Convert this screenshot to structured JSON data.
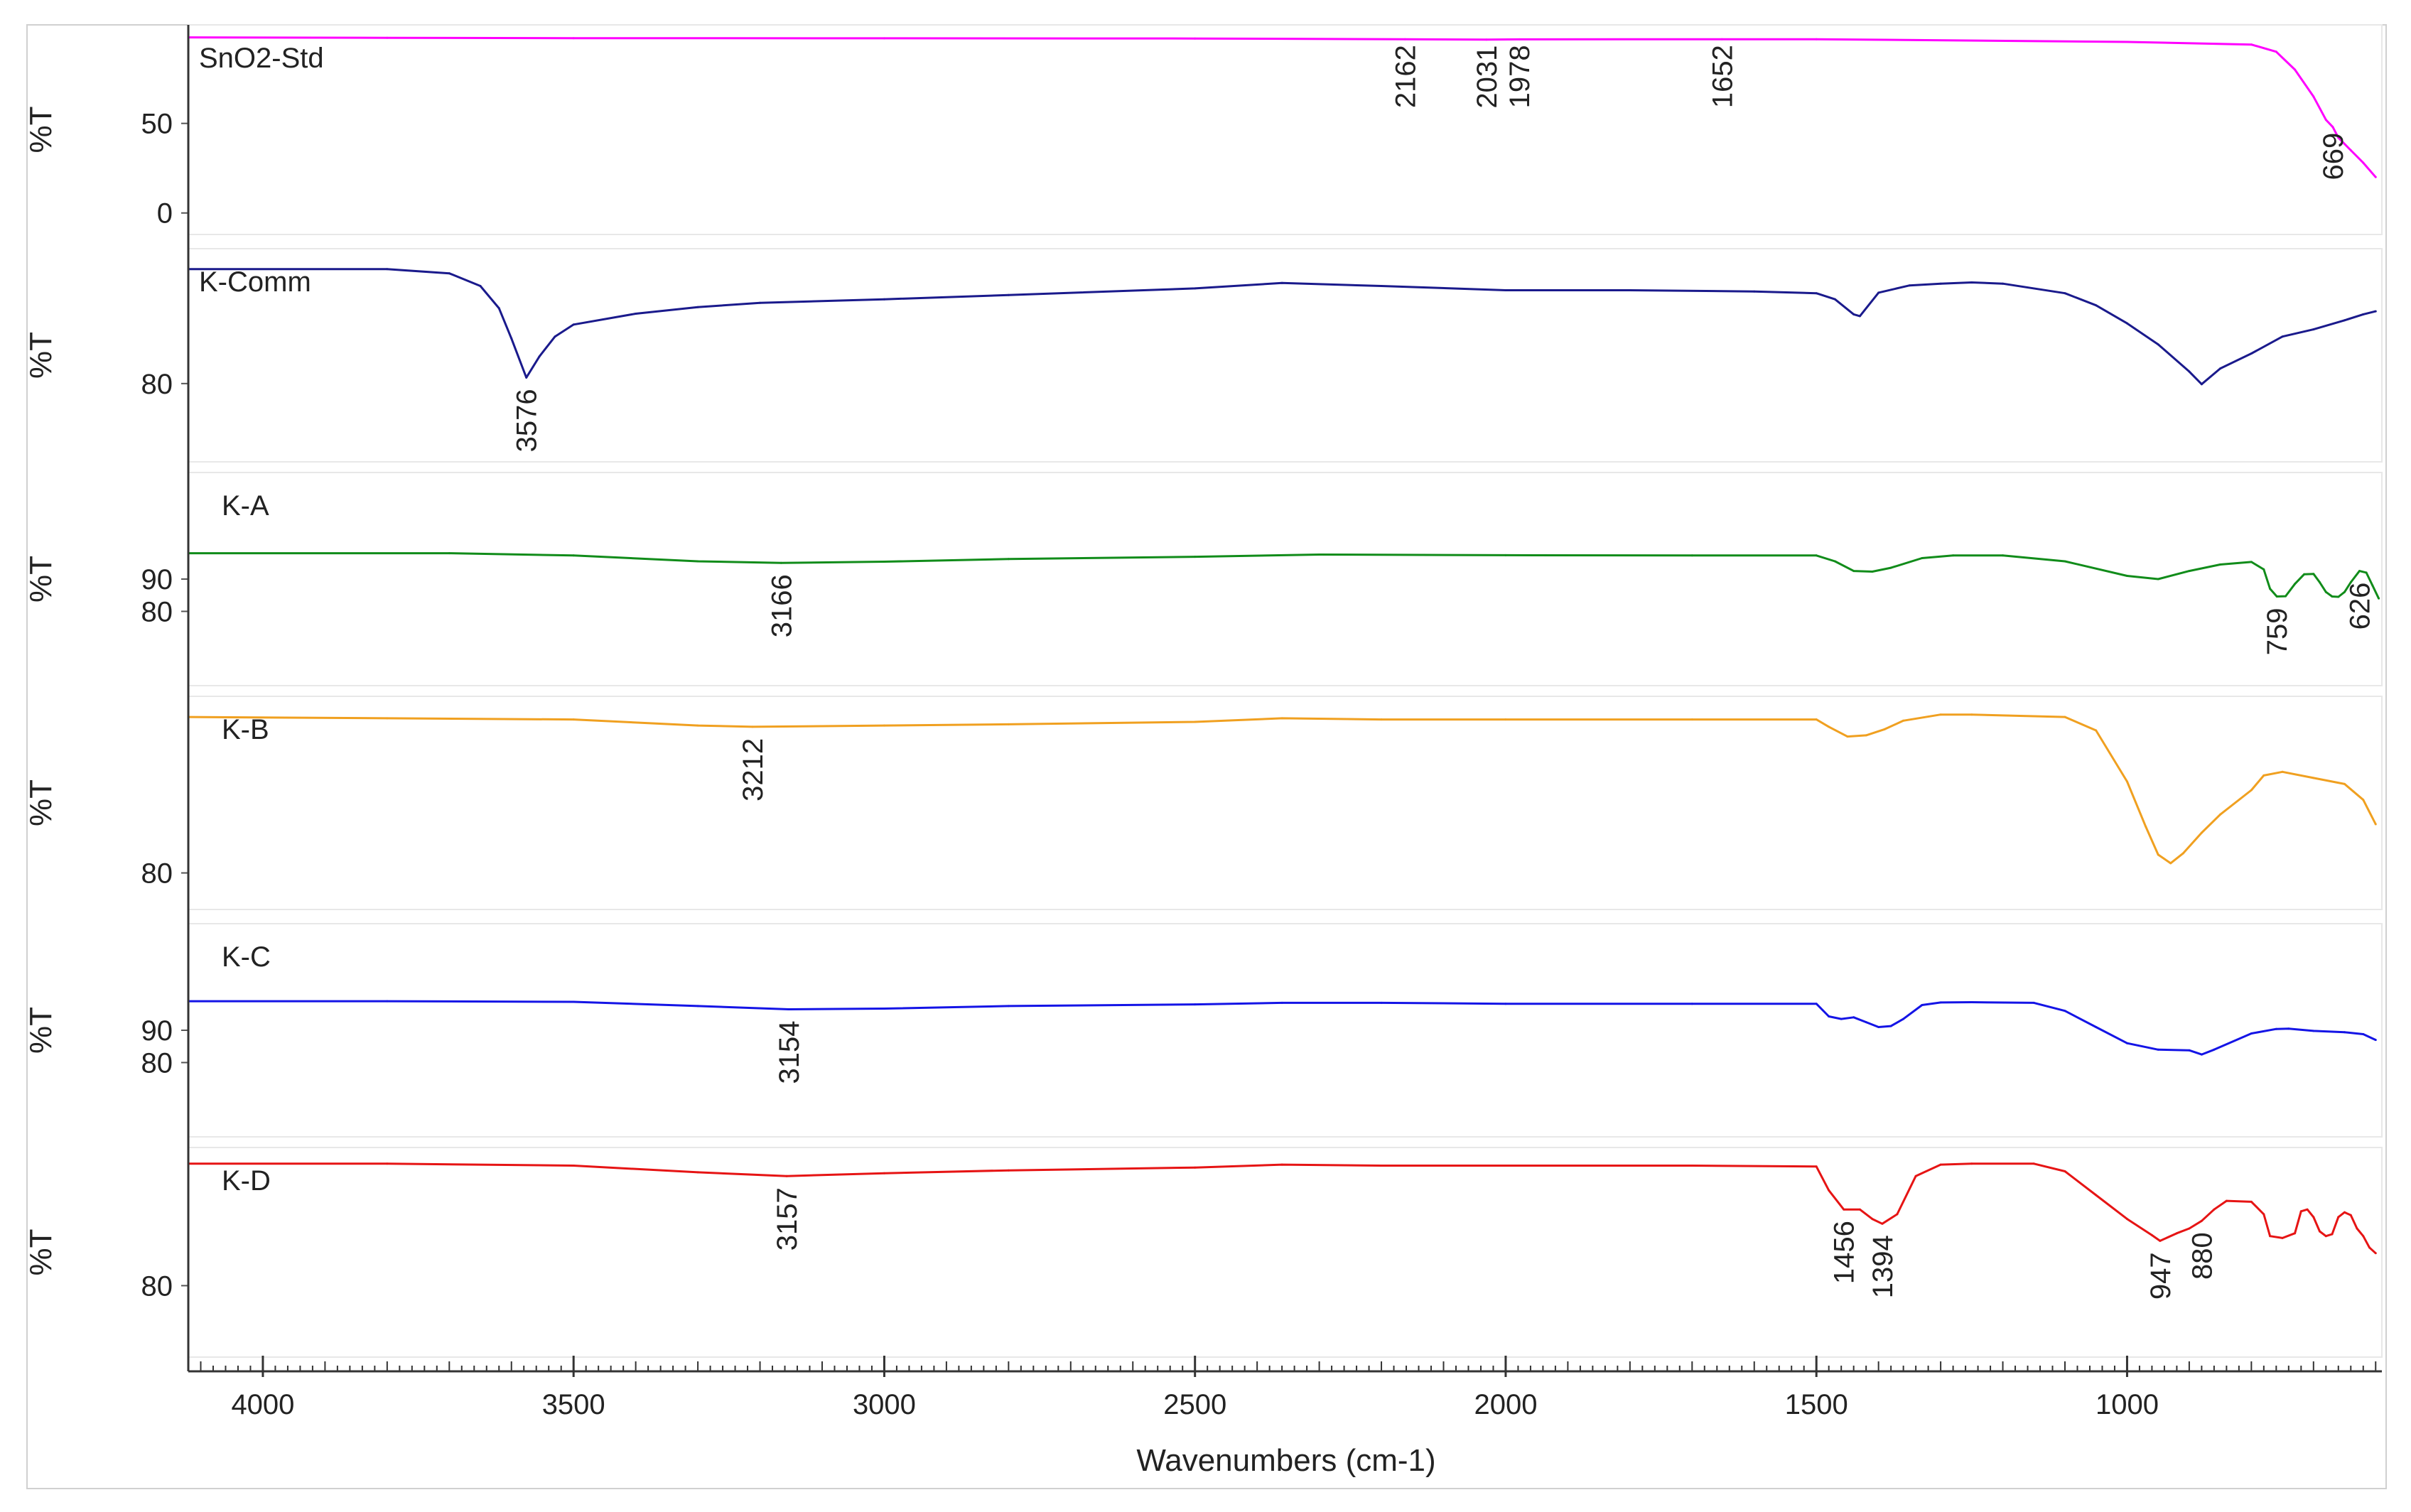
{
  "chart_data": {
    "type": "line",
    "xlabel": "Wavenumbers (cm-1)",
    "xlim": [
      4120,
      590
    ],
    "x_reversed": true,
    "x_ticks": [
      4000,
      3500,
      3000,
      2500,
      2000,
      1500,
      1000
    ],
    "x_tick_labels": [
      "4000",
      "3500",
      "3000",
      "2500",
      "2000",
      "1500",
      "1000"
    ],
    "series": [
      {
        "name": "SnO2-Std",
        "ylabel": "%T",
        "color": "#ff00ff",
        "ylim": [
          -12,
          105
        ],
        "y_ticks": [
          0,
          50
        ],
        "y_tick_labels": [
          "0",
          "50"
        ],
        "x": [
          4120,
          3800,
          3500,
          3000,
          2500,
          2162,
          2031,
          1978,
          1652,
          1500,
          1000,
          800,
          760,
          730,
          700,
          680,
          669,
          660,
          640,
          620,
          600
        ],
        "y": [
          98,
          97.8,
          97.6,
          97.5,
          97.4,
          97,
          96.8,
          96.9,
          97,
          97,
          95.5,
          94,
          90,
          80,
          65,
          52,
          48,
          42,
          35,
          28,
          20
        ],
        "peaks": [
          {
            "x": 2162,
            "label": "2162"
          },
          {
            "x": 2031,
            "label": "2031"
          },
          {
            "x": 1978,
            "label": "1978"
          },
          {
            "x": 1652,
            "label": "1652"
          },
          {
            "x": 669,
            "label": "669"
          }
        ]
      },
      {
        "name": "K-Comm",
        "ylabel": "%T",
        "color": "#1a1a8c",
        "ylim": [
          67,
          102.4
        ],
        "y_ticks": [
          80
        ],
        "y_tick_labels": [
          "80"
        ],
        "x": [
          4120,
          3800,
          3700,
          3650,
          3620,
          3600,
          3576,
          3555,
          3530,
          3500,
          3400,
          3300,
          3200,
          3000,
          2800,
          2500,
          2360,
          2200,
          2000,
          1800,
          1600,
          1500,
          1470,
          1440,
          1430,
          1400,
          1350,
          1300,
          1250,
          1200,
          1100,
          1050,
          1000,
          950,
          900,
          880,
          850,
          800,
          750,
          700,
          650,
          620,
          600
        ],
        "y": [
          99,
          99,
          98.3,
          96.2,
          92.5,
          87.5,
          81,
          84.5,
          87.8,
          89.8,
          91.6,
          92.7,
          93.4,
          94,
          94.7,
          95.8,
          96.7,
          96.2,
          95.5,
          95.5,
          95.3,
          95,
          94,
          91.5,
          91.2,
          95.1,
          96.3,
          96.6,
          96.8,
          96.6,
          95,
          93,
          90,
          86.5,
          82,
          79.9,
          82.5,
          85,
          87.8,
          89,
          90.5,
          91.5,
          92
        ]
      },
      {
        "name": "K-A",
        "ylabel": "%T",
        "color": "#118c1a",
        "ylim": [
          57,
          123
        ],
        "y_ticks": [
          80,
          90
        ],
        "y_tick_labels": [
          "80",
          "90"
        ],
        "x": [
          4120,
          3700,
          3500,
          3300,
          3166,
          3000,
          2800,
          2500,
          2300,
          2000,
          1700,
          1500,
          1470,
          1440,
          1410,
          1380,
          1330,
          1280,
          1200,
          1100,
          1000,
          950,
          900,
          850,
          800,
          780,
          770,
          759,
          745,
          730,
          715,
          700,
          690,
          680,
          670,
          660,
          650,
          640,
          626,
          615,
          605,
          595
        ],
        "y": [
          98,
          98,
          97.3,
          95.5,
          95,
          95.4,
          96.2,
          96.9,
          97.6,
          97.4,
          97.3,
          97.3,
          95.5,
          92.5,
          92.3,
          93.5,
          96.5,
          97.3,
          97.3,
          95.5,
          91,
          90,
          92.5,
          94.5,
          95.3,
          93,
          87,
          84.6,
          84.7,
          88.5,
          91.5,
          91.6,
          89,
          86,
          84.6,
          84.5,
          86,
          89,
          92.5,
          92,
          88,
          84
        ]
      },
      {
        "name": "K-B",
        "ylabel": "%T",
        "color": "#f0a020",
        "ylim": [
          77,
          94.5
        ],
        "y_ticks": [
          80
        ],
        "y_tick_labels": [
          "80"
        ],
        "x": [
          4120,
          3800,
          3500,
          3300,
          3212,
          3000,
          2800,
          2500,
          2360,
          2200,
          2000,
          1700,
          1500,
          1480,
          1450,
          1420,
          1390,
          1360,
          1300,
          1250,
          1100,
          1050,
          1000,
          970,
          950,
          930,
          910,
          880,
          850,
          800,
          780,
          750,
          700,
          650,
          620,
          600
        ],
        "y": [
          92.8,
          92.7,
          92.6,
          92.1,
          92,
          92.1,
          92.2,
          92.4,
          92.7,
          92.6,
          92.6,
          92.6,
          92.6,
          92,
          91.2,
          91.3,
          91.8,
          92.5,
          93,
          93,
          92.8,
          91.7,
          87.5,
          83.8,
          81.5,
          80.8,
          81.6,
          83.3,
          84.8,
          86.8,
          88,
          88.3,
          87.8,
          87.3,
          86,
          84
        ]
      },
      {
        "name": "K-C",
        "ylabel": "%T",
        "color": "#1414e6",
        "ylim": [
          57,
          123
        ],
        "y_ticks": [
          80,
          90
        ],
        "y_tick_labels": [
          "80",
          "90"
        ],
        "x": [
          4120,
          3800,
          3500,
          3300,
          3154,
          3000,
          2800,
          2500,
          2360,
          2200,
          2000,
          1700,
          1500,
          1480,
          1460,
          1440,
          1420,
          1400,
          1380,
          1360,
          1330,
          1300,
          1250,
          1150,
          1100,
          1050,
          1000,
          950,
          900,
          880,
          860,
          800,
          760,
          740,
          700,
          650,
          620,
          600
        ],
        "y": [
          99,
          99,
          98.8,
          97.5,
          96.5,
          96.7,
          97.5,
          98,
          98.5,
          98.5,
          98.2,
          98.2,
          98.2,
          94.3,
          93.5,
          94,
          92.5,
          91,
          91.3,
          93.5,
          97.8,
          98.6,
          98.7,
          98.5,
          96,
          91,
          86,
          84,
          83.8,
          82.5,
          84,
          89,
          90.4,
          90.5,
          89.8,
          89.4,
          88.8,
          87
        ]
      },
      {
        "name": "K-D",
        "ylabel": "%T",
        "color": "#e61414",
        "ylim": [
          72.5,
          94.5
        ],
        "y_ticks": [
          80
        ],
        "y_tick_labels": [
          "80"
        ],
        "x": [
          4120,
          3800,
          3500,
          3300,
          3157,
          3000,
          2800,
          2500,
          2360,
          2200,
          2000,
          1700,
          1500,
          1480,
          1456,
          1430,
          1410,
          1394,
          1370,
          1340,
          1300,
          1250,
          1150,
          1100,
          1050,
          1000,
          960,
          947,
          920,
          900,
          880,
          860,
          840,
          800,
          780,
          770,
          750,
          730,
          720,
          710,
          700,
          690,
          680,
          670,
          660,
          650,
          640,
          630,
          620,
          610,
          600
        ],
        "y": [
          92.8,
          92.8,
          92.6,
          91.9,
          91.5,
          91.8,
          92.1,
          92.4,
          92.7,
          92.6,
          92.6,
          92.6,
          92.5,
          90,
          88,
          88,
          87,
          86.5,
          87.5,
          91.5,
          92.7,
          92.8,
          92.8,
          92,
          89.5,
          87,
          85.3,
          84.7,
          85.5,
          86,
          86.8,
          88,
          88.9,
          88.8,
          87.5,
          85.2,
          85,
          85.5,
          87.8,
          88,
          87.2,
          85.7,
          85.2,
          85.4,
          87.2,
          87.7,
          87.4,
          86,
          85.2,
          84,
          83.4
        ]
      }
    ],
    "peak_annotations": [
      {
        "series": "K-Comm",
        "x": 3576,
        "label": "3576"
      },
      {
        "series": "K-A",
        "x": 3166,
        "label": "3166"
      },
      {
        "series": "K-A",
        "x": 759,
        "label": "759"
      },
      {
        "series": "K-A",
        "x": 626,
        "label": "626"
      },
      {
        "series": "K-B",
        "x": 3212,
        "label": "3212"
      },
      {
        "series": "K-C",
        "x": 3154,
        "label": "3154"
      },
      {
        "series": "K-D",
        "x": 3157,
        "label": "3157"
      },
      {
        "series": "K-D",
        "x": 1456,
        "label": "1456"
      },
      {
        "series": "K-D",
        "x": 1394,
        "label": "1394"
      },
      {
        "series": "K-D",
        "x": 947,
        "label": "947"
      },
      {
        "series": "K-D",
        "x": 880,
        "label": "880"
      }
    ]
  }
}
